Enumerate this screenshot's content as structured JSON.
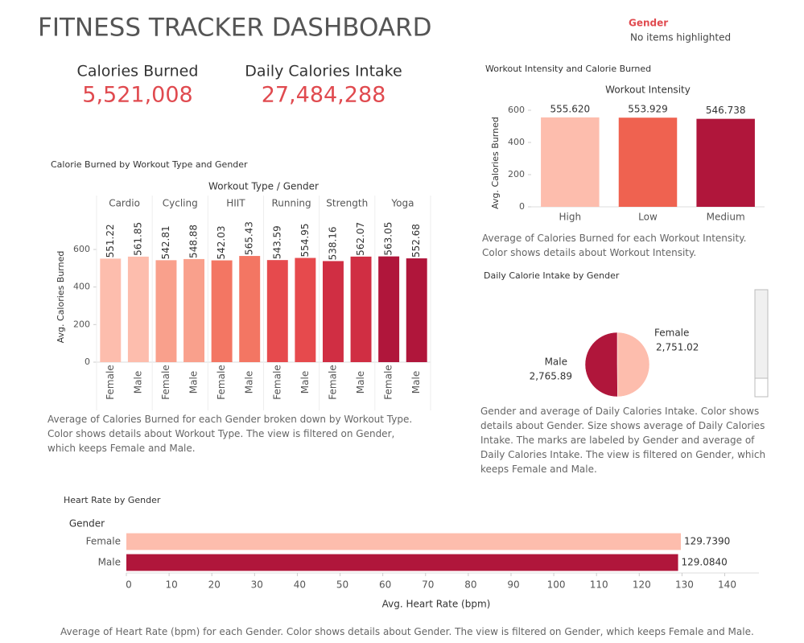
{
  "header": {
    "title": "FITNESS TRACKER DASHBOARD"
  },
  "filter": {
    "title": "Gender",
    "status": "No items highlighted"
  },
  "kpis": [
    {
      "label": "Calories Burned",
      "value": "5,521,008"
    },
    {
      "label": "Daily Calories Intake",
      "value": "27,484,288"
    }
  ],
  "chart_data": [
    {
      "type": "bar",
      "title": "Calorie Burned by Workout Type and Gender",
      "header": "Workout Type / Gender",
      "groups": [
        "Cardio",
        "Cycling",
        "HIIT",
        "Running",
        "Strength",
        "Yoga"
      ],
      "group_colors": [
        "#fdbdad",
        "#f9a08c",
        "#f37663",
        "#e64a4d",
        "#d02e43",
        "#b0163b"
      ],
      "categories": [
        "Female",
        "Male",
        "Female",
        "Male",
        "Female",
        "Male",
        "Female",
        "Male",
        "Female",
        "Male",
        "Female",
        "Male"
      ],
      "values": [
        551.22,
        561.85,
        542.81,
        548.88,
        542.03,
        565.43,
        543.59,
        554.95,
        538.16,
        562.07,
        563.05,
        552.68
      ],
      "ylabel": "Avg. Calories Burned",
      "ylim": [
        0,
        780
      ],
      "yticks": [
        0,
        200,
        400,
        600
      ],
      "caption": "Average of Calories Burned for each Gender broken down by Workout Type.  Color shows details about Workout Type. The view is filtered on Gender, which keeps Female and Male."
    },
    {
      "type": "bar",
      "title": "Workout Intensity and Calorie Burned",
      "header": "Workout Intensity",
      "categories": [
        "High",
        "Low",
        "Medium"
      ],
      "colors": [
        "#fdbdad",
        "#ef6250",
        "#b0163b"
      ],
      "values": [
        555.62,
        553.929,
        546.738
      ],
      "value_labels": [
        "555.620",
        "553.929",
        "546.738"
      ],
      "ylabel": "Avg. Calories Burned",
      "ylim": [
        0,
        645
      ],
      "yticks": [
        0,
        200,
        400,
        600
      ],
      "caption": "Average of Calories Burned for each Workout Intensity.  Color shows details about Workout Intensity."
    },
    {
      "type": "pie",
      "title": "Daily Calorie Intake by Gender",
      "categories": [
        "Female",
        "Male"
      ],
      "colors": [
        "#fdbdad",
        "#b0163b"
      ],
      "values": [
        2751.02,
        2765.89
      ],
      "value_labels": [
        "2,751.02",
        "2,765.89"
      ],
      "caption": "Gender and average of Daily Calories Intake.  Color shows details about Gender.  Size shows average of Daily Calories Intake.  The marks are labeled by Gender and average of Daily Calories Intake. The view is filtered on Gender, which keeps Female and Male."
    },
    {
      "type": "bar",
      "orientation": "horizontal",
      "title": "Heart Rate by Gender",
      "header": "Gender",
      "categories": [
        "Female",
        "Male"
      ],
      "colors": [
        "#fdbdad",
        "#b0163b"
      ],
      "values": [
        129.739,
        129.084
      ],
      "value_labels": [
        "129.7390",
        "129.0840"
      ],
      "xlabel": "Avg. Heart Rate (bpm)",
      "xlim": [
        0,
        148
      ],
      "xticks": [
        0,
        10,
        20,
        30,
        40,
        50,
        60,
        70,
        80,
        90,
        100,
        110,
        120,
        130,
        140
      ],
      "caption": "Average of Heart Rate (bpm) for each Gender.  Color shows details about Gender. The view is filtered on Gender, which keeps Female and Male."
    }
  ]
}
